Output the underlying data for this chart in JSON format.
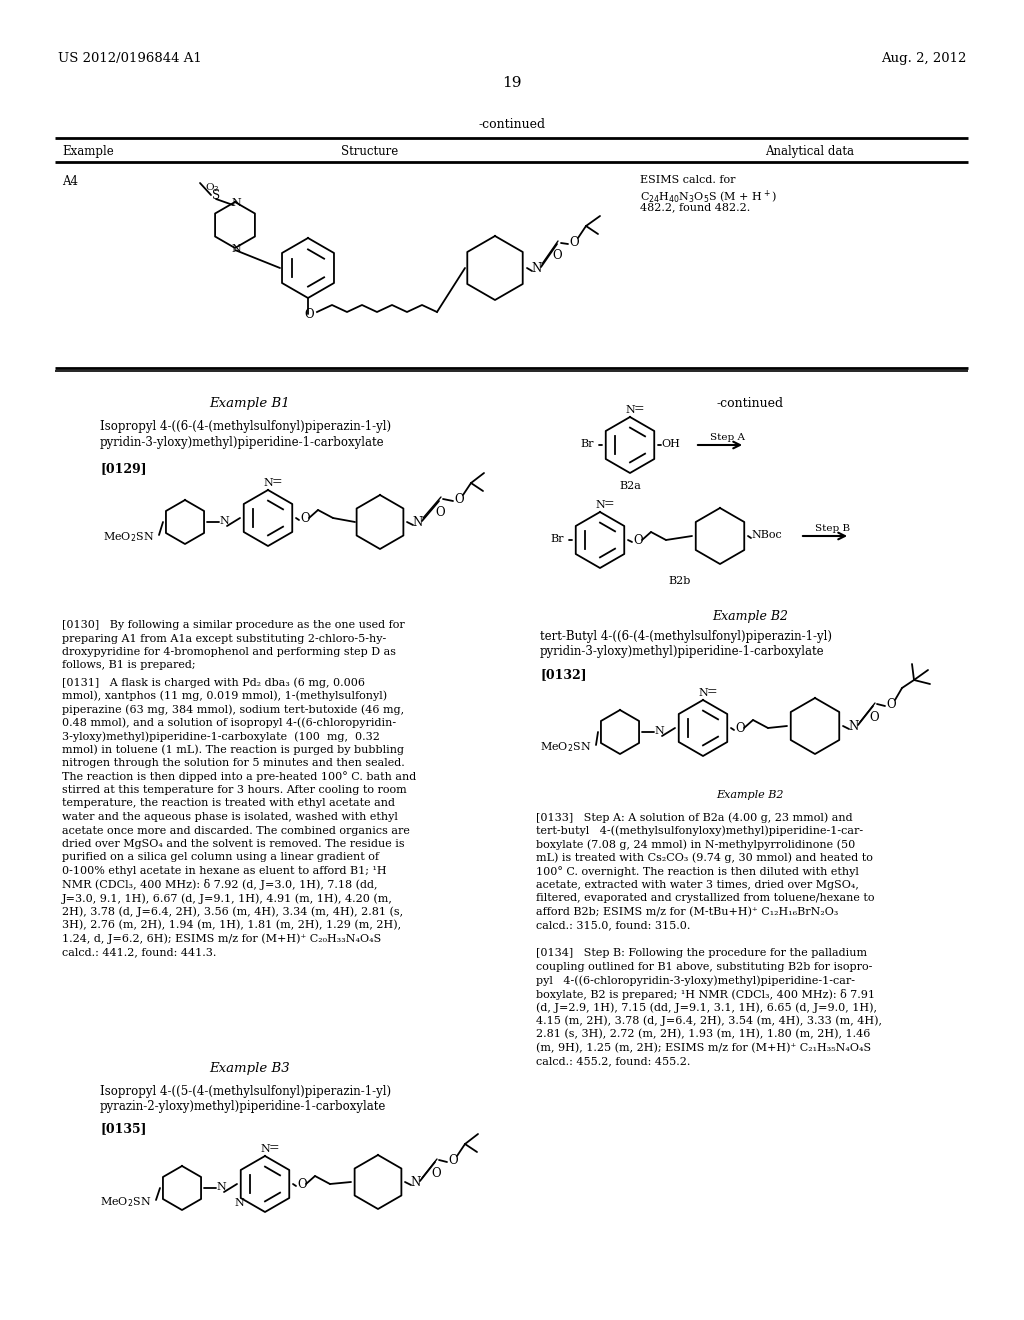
{
  "page_number": "19",
  "left_header": "US 2012/0196844 A1",
  "right_header": "Aug. 2, 2012",
  "bg": "#ffffff",
  "tc": "#000000"
}
